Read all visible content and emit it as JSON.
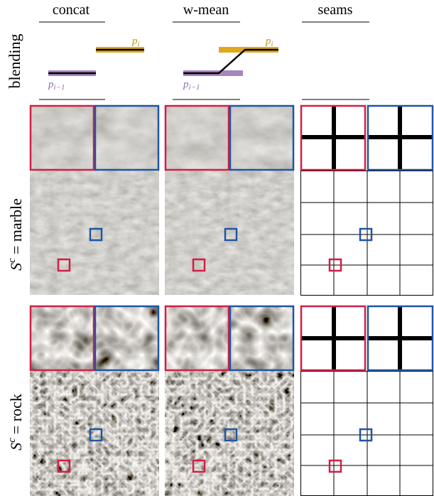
{
  "columns": [
    "concat",
    "w-mean",
    "seams"
  ],
  "rows": [
    {
      "label": "blending"
    },
    {
      "symbol": "S",
      "superscript": "c",
      "text": "= marble"
    },
    {
      "symbol": "S",
      "superscript": "c",
      "text": "= rock"
    }
  ],
  "blending": {
    "upper": {
      "symbol": "p",
      "subscript": "i"
    },
    "lower": {
      "symbol": "p",
      "subscript": "i−1"
    }
  }
}
